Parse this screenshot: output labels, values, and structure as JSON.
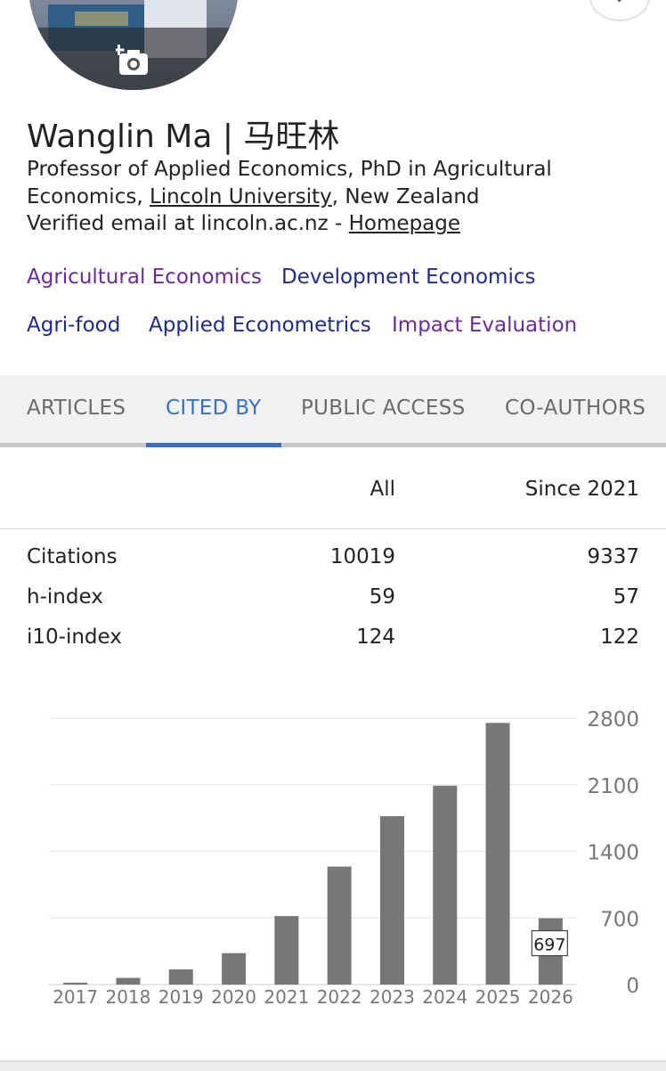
{
  "profile": {
    "name": "Wanglin Ma | 马旺林",
    "affiliation_pre": "Professor of Applied Economics, PhD in Agricultural Economics, ",
    "affiliation_link": "Lincoln University",
    "affiliation_post": ", New Zealand",
    "email_text": "Verified email at lincoln.ac.nz - ",
    "homepage_link": "Homepage",
    "interests": [
      "Agricultural Economics",
      "Development Economics",
      "Agri-food",
      "Applied Econometrics",
      "Impact Evaluation"
    ]
  },
  "icons": {
    "avatar_action": "add-photo-icon",
    "corner": "chevron-down-icon"
  },
  "tabs": [
    "ARTICLES",
    "CITED BY",
    "PUBLIC ACCESS",
    "CO-AUTHORS"
  ],
  "active_tab": "CITED BY",
  "stats": {
    "header_all": "All",
    "header_since": "Since 2021",
    "rows": [
      {
        "label": "Citations",
        "all": "10019",
        "since": "9337"
      },
      {
        "label": "h-index",
        "all": "59",
        "since": "57"
      },
      {
        "label": "i10-index",
        "all": "124",
        "since": "122"
      }
    ]
  },
  "colors": {
    "accent": "#3a6fc4",
    "visited_link": "#6a2b9a",
    "link": "#1f2a8a",
    "bar": "#777777"
  },
  "chart_data": {
    "type": "bar",
    "categories": [
      "2017",
      "2018",
      "2019",
      "2020",
      "2021",
      "2022",
      "2023",
      "2024",
      "2025",
      "2026"
    ],
    "values": [
      20,
      70,
      160,
      330,
      720,
      1240,
      1770,
      2090,
      2750,
      697
    ],
    "yticks": [
      "0",
      "700",
      "1400",
      "2100",
      "2800"
    ],
    "ylim": [
      0,
      2800
    ],
    "grid": true,
    "tooltip": "697"
  }
}
